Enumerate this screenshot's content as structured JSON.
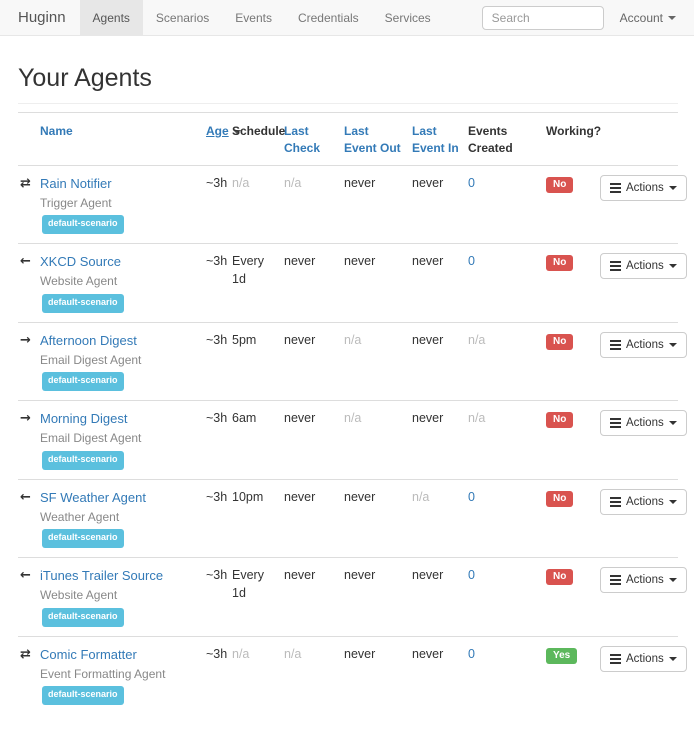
{
  "navbar": {
    "brand": "Huginn",
    "items": [
      {
        "label": "Agents",
        "active": true
      },
      {
        "label": "Scenarios",
        "active": false
      },
      {
        "label": "Events",
        "active": false
      },
      {
        "label": "Credentials",
        "active": false
      },
      {
        "label": "Services",
        "active": false
      }
    ],
    "search_placeholder": "Search",
    "account_label": "Account"
  },
  "page": {
    "title": "Your Agents"
  },
  "icons": {
    "transfer": "⇄",
    "arrow-left": "←",
    "arrow-right": "→"
  },
  "colors": {
    "link_blue": "#337ab7",
    "scenario_badge": "#5bc0de",
    "working_no": "#d9534f",
    "working_yes": "#5cb85c",
    "not_applicable": "#bbbbbb",
    "navbar_bg": "#f8f8f8"
  },
  "table": {
    "headers": [
      {
        "label": "Name",
        "link": true
      },
      {
        "label": "Age",
        "link": true,
        "sorted": "desc"
      },
      {
        "label": "Schedule",
        "link": false
      },
      {
        "label": "Last Check",
        "link": true
      },
      {
        "label": "Last Event Out",
        "link": true
      },
      {
        "label": "Last Event In",
        "link": true
      },
      {
        "label": "Events Created",
        "link": false
      },
      {
        "label": "Working?",
        "link": false
      }
    ],
    "actions_label": "Actions",
    "rows": [
      {
        "icon": "transfer",
        "name": "Rain Notifier",
        "type": "Trigger Agent",
        "scenario": "default-scenario",
        "age": "~3h",
        "schedule": "n/a",
        "last_check": "n/a",
        "last_event_out": "never",
        "last_event_in": "never",
        "events_created": "0",
        "working": "No"
      },
      {
        "icon": "arrow-left",
        "name": "XKCD Source",
        "type": "Website Agent",
        "scenario": "default-scenario",
        "age": "~3h",
        "schedule": "Every 1d",
        "last_check": "never",
        "last_event_out": "never",
        "last_event_in": "never",
        "events_created": "0",
        "working": "No"
      },
      {
        "icon": "arrow-right",
        "name": "Afternoon Digest",
        "type": "Email Digest Agent",
        "scenario": "default-scenario",
        "age": "~3h",
        "schedule": "5pm",
        "last_check": "never",
        "last_event_out": "n/a",
        "last_event_in": "never",
        "events_created": "n/a",
        "working": "No"
      },
      {
        "icon": "arrow-right",
        "name": "Morning Digest",
        "type": "Email Digest Agent",
        "scenario": "default-scenario",
        "age": "~3h",
        "schedule": "6am",
        "last_check": "never",
        "last_event_out": "n/a",
        "last_event_in": "never",
        "events_created": "n/a",
        "working": "No"
      },
      {
        "icon": "arrow-left",
        "name": "SF Weather Agent",
        "type": "Weather Agent",
        "scenario": "default-scenario",
        "age": "~3h",
        "schedule": "10pm",
        "last_check": "never",
        "last_event_out": "never",
        "last_event_in": "n/a",
        "events_created": "0",
        "working": "No"
      },
      {
        "icon": "arrow-left",
        "name": "iTunes Trailer Source",
        "type": "Website Agent",
        "scenario": "default-scenario",
        "age": "~3h",
        "schedule": "Every 1d",
        "last_check": "never",
        "last_event_out": "never",
        "last_event_in": "never",
        "events_created": "0",
        "working": "No"
      },
      {
        "icon": "transfer",
        "name": "Comic Formatter",
        "type": "Event Formatting Agent",
        "scenario": "default-scenario",
        "age": "~3h",
        "schedule": "n/a",
        "last_check": "n/a",
        "last_event_out": "never",
        "last_event_in": "never",
        "events_created": "0",
        "working": "Yes"
      }
    ]
  }
}
